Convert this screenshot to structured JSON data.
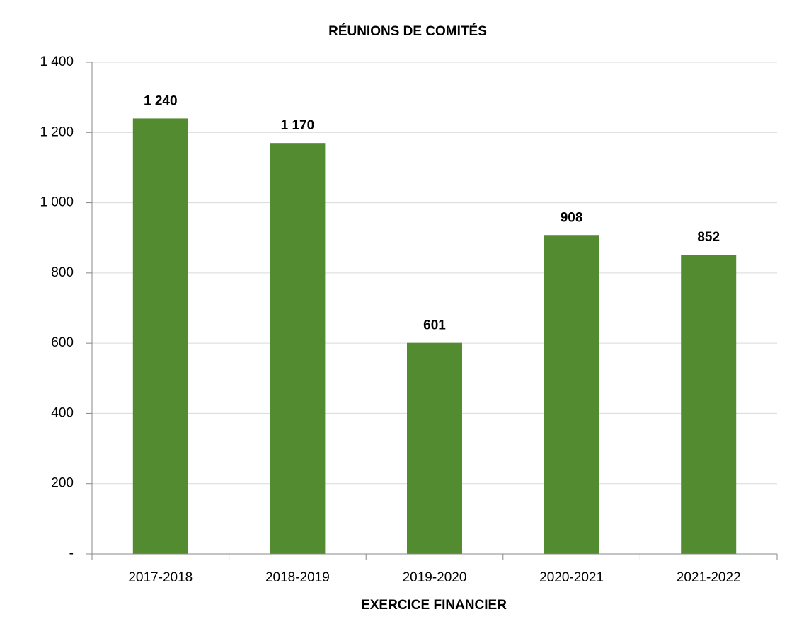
{
  "chart_data": {
    "type": "bar",
    "title": "RÉUNIONS DE COMITÉS",
    "x_label": "EXERCICE FINANCIER",
    "categories": [
      "2017-2018",
      "2018-2019",
      "2019-2020",
      "2020-2021",
      "2021-2022"
    ],
    "values": [
      1240,
      1170,
      601,
      908,
      852
    ],
    "value_labels": [
      "1 240",
      "1 170",
      "601",
      "908",
      "852"
    ],
    "color": "#538c30",
    "ylim": [
      0,
      1400
    ],
    "yticks": [
      {
        "value": 0,
        "label": "-"
      },
      200,
      400,
      600,
      800,
      {
        "value": 1000,
        "label": "1 000"
      },
      {
        "value": 1200,
        "label": "1 200"
      },
      {
        "value": 1400,
        "label": "1 400"
      }
    ],
    "grid": true
  }
}
